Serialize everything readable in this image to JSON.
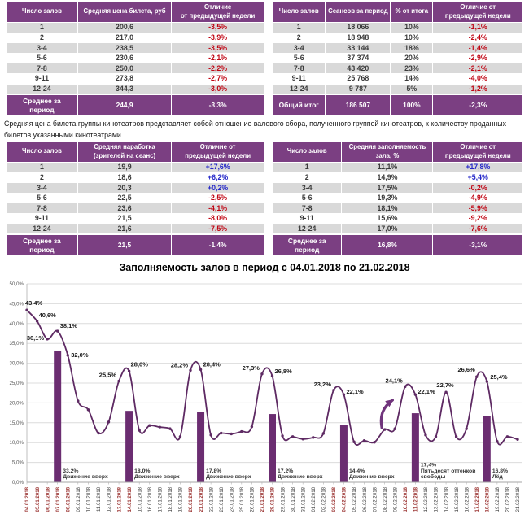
{
  "colors": {
    "header_purple": "#7b3f82",
    "row_gray": "#d9d9d9",
    "line_purple": "#5e2a63",
    "bar_purple": "#6b2d71",
    "arrow_purple": "#70347c",
    "positive_blue": "#2427c9",
    "negative_red": "#c00513",
    "holiday_date_red": "#9e3a38",
    "weekday_date_gray": "#3f3f3f"
  },
  "tables": {
    "price": {
      "headers": [
        "Число залов",
        "Средняя цена билета, руб",
        "Отличие\nот предыдущей недели"
      ],
      "rows": [
        [
          "1",
          "200,6",
          "-3,5%"
        ],
        [
          "2",
          "217,0",
          "-3,9%"
        ],
        [
          "3-4",
          "238,5",
          "-3,5%"
        ],
        [
          "5-6",
          "230,6",
          "-2,1%"
        ],
        [
          "7-8",
          "250,0",
          "-2,2%"
        ],
        [
          "9-11",
          "273,8",
          "-2,7%"
        ],
        [
          "12-24",
          "344,3",
          "-3,0%"
        ]
      ],
      "footer": [
        "Среднее за\nпериод",
        "244,9",
        "-3,3%"
      ]
    },
    "sessions": {
      "headers": [
        "Число залов",
        "Сеансов за период",
        "% от итога",
        "Отличие от\nпредыдущей недели"
      ],
      "rows": [
        [
          "1",
          "18 066",
          "10%",
          "-1,1%"
        ],
        [
          "2",
          "18 948",
          "10%",
          "-2,4%"
        ],
        [
          "3-4",
          "33 144",
          "18%",
          "-1,4%"
        ],
        [
          "5-6",
          "37 374",
          "20%",
          "-2,9%"
        ],
        [
          "7-8",
          "43 420",
          "23%",
          "-2,1%"
        ],
        [
          "9-11",
          "25 768",
          "14%",
          "-4,0%"
        ],
        [
          "12-24",
          "9 787",
          "5%",
          "-1,2%"
        ]
      ],
      "footer": [
        "Общий итог",
        "186 507",
        "100%",
        "-2,3%"
      ]
    },
    "attendance": {
      "headers": [
        "Число залов",
        "Средняя наработка\n(зрителей на сеанс)",
        "Отличие от\nпредыдущей недели"
      ],
      "rows": [
        [
          "1",
          "19,9",
          "+17,6%"
        ],
        [
          "2",
          "18,6",
          "+6,2%"
        ],
        [
          "3-4",
          "20,3",
          "+0,2%"
        ],
        [
          "5-6",
          "22,5",
          "-2,5%"
        ],
        [
          "7-8",
          "23,6",
          "-4,1%"
        ],
        [
          "9-11",
          "21,5",
          "-8,0%"
        ],
        [
          "12-24",
          "21,6",
          "-7,5%"
        ]
      ],
      "footer": [
        "Среднее за\nпериод",
        "21,5",
        "-1,4%"
      ]
    },
    "occupancy": {
      "headers": [
        "Число залов",
        "Средняя заполняемость\nзала, %",
        "Отличие от\nпредыдущей недели"
      ],
      "rows": [
        [
          "1",
          "11,1%",
          "+17,8%"
        ],
        [
          "2",
          "14,9%",
          "+5,4%"
        ],
        [
          "3-4",
          "17,5%",
          "-0,2%"
        ],
        [
          "5-6",
          "19,3%",
          "-4,9%"
        ],
        [
          "7-8",
          "18,1%",
          "-5,9%"
        ],
        [
          "9-11",
          "15,6%",
          "-9,2%"
        ],
        [
          "12-24",
          "17,0%",
          "-7,6%"
        ]
      ],
      "footer": [
        "Среднее за\nпериод",
        "16,8%",
        "-3,1%"
      ]
    }
  },
  "note": "Средняя цена билета группы кинотеатров представляет собой отношение валового сбора, полученного группой кинотеатров, к количеству проданных билетов указанными кинотеатрами.",
  "chart_data": {
    "type": "line",
    "title": "Заполняемость залов в период с 04.01.2018 по 21.02.2018",
    "ylim": [
      0,
      50
    ],
    "ytick_step": 5,
    "yticks": [
      "50,0%",
      "45,0%",
      "40,0%",
      "35,0%",
      "30,0%",
      "25,0%",
      "20,0%",
      "15,0%",
      "10,0%",
      "5,0%",
      "0,0%"
    ],
    "grid": true,
    "legend": "none",
    "points": [
      {
        "date": "04.01.2018",
        "value": 43.4,
        "label": "43,4%",
        "holiday": true
      },
      {
        "date": "05.01.2018",
        "value": 40.6,
        "label": "40,6%",
        "holiday": true
      },
      {
        "date": "06.01.2018",
        "value": 36.1,
        "label": "36,1%",
        "holiday": true
      },
      {
        "date": "07.01.2018",
        "value": 38.1,
        "label": "38,1%",
        "holiday": true
      },
      {
        "date": "08.01.2018",
        "value": 32.0,
        "label": "32,0%",
        "holiday": true
      },
      {
        "date": "09.01.2018",
        "value": 20.5,
        "holiday": false
      },
      {
        "date": "10.01.2018",
        "value": 18.3,
        "holiday": false
      },
      {
        "date": "11.01.2018",
        "value": 12.4,
        "holiday": false
      },
      {
        "date": "12.01.2018",
        "value": 15.2,
        "holiday": false
      },
      {
        "date": "13.01.2018",
        "value": 25.5,
        "label": "25,5%",
        "holiday": true
      },
      {
        "date": "14.01.2018",
        "value": 28.0,
        "label": "28,0%",
        "holiday": true
      },
      {
        "date": "15.01.2018",
        "value": 13.1,
        "holiday": false
      },
      {
        "date": "16.01.2018",
        "value": 14.3,
        "holiday": false
      },
      {
        "date": "17.01.2018",
        "value": 13.9,
        "holiday": false
      },
      {
        "date": "18.01.2018",
        "value": 13.5,
        "holiday": false
      },
      {
        "date": "19.01.2018",
        "value": 11.5,
        "holiday": false
      },
      {
        "date": "20.01.2018",
        "value": 28.2,
        "label": "28,2%",
        "holiday": true
      },
      {
        "date": "21.01.2018",
        "value": 28.4,
        "label": "28,4%",
        "holiday": true
      },
      {
        "date": "22.01.2018",
        "value": 11.9,
        "holiday": false
      },
      {
        "date": "23.01.2018",
        "value": 12.4,
        "holiday": false
      },
      {
        "date": "24.01.2018",
        "value": 12.2,
        "holiday": false
      },
      {
        "date": "25.01.2018",
        "value": 12.8,
        "holiday": false
      },
      {
        "date": "26.01.2018",
        "value": 14.0,
        "holiday": false
      },
      {
        "date": "27.01.2018",
        "value": 27.3,
        "label": "27,3%",
        "holiday": true
      },
      {
        "date": "28.01.2018",
        "value": 26.8,
        "label": "26,8%",
        "holiday": true
      },
      {
        "date": "29.01.2018",
        "value": 11.7,
        "holiday": false
      },
      {
        "date": "30.01.2018",
        "value": 11.5,
        "holiday": false
      },
      {
        "date": "31.01.2018",
        "value": 10.9,
        "holiday": false
      },
      {
        "date": "01.02.2018",
        "value": 11.3,
        "holiday": false
      },
      {
        "date": "02.02.2018",
        "value": 12.3,
        "holiday": false
      },
      {
        "date": "03.02.2018",
        "value": 23.2,
        "label": "23,2%",
        "holiday": true
      },
      {
        "date": "04.02.2018",
        "value": 22.1,
        "label": "22,1%",
        "holiday": true
      },
      {
        "date": "05.02.2018",
        "value": 10.2,
        "holiday": false
      },
      {
        "date": "06.02.2018",
        "value": 10.5,
        "holiday": false
      },
      {
        "date": "07.02.2018",
        "value": 10.1,
        "holiday": false
      },
      {
        "date": "08.02.2018",
        "value": 13.3,
        "holiday": false
      },
      {
        "date": "09.02.2018",
        "value": 13.5,
        "holiday": false
      },
      {
        "date": "10.02.2018",
        "value": 24.1,
        "label": "24,1%",
        "holiday": true
      },
      {
        "date": "11.02.2018",
        "value": 22.1,
        "label": "22,1%",
        "holiday": true
      },
      {
        "date": "12.02.2018",
        "value": 11.9,
        "holiday": false
      },
      {
        "date": "13.02.2018",
        "value": 11.5,
        "holiday": false
      },
      {
        "date": "14.02.2018",
        "value": 22.7,
        "label": "22,7%",
        "holiday": false
      },
      {
        "date": "15.02.2018",
        "value": 11.5,
        "holiday": false
      },
      {
        "date": "16.02.2018",
        "value": 13.5,
        "holiday": false
      },
      {
        "date": "17.02.2018",
        "value": 26.6,
        "label": "26,6%",
        "holiday": true
      },
      {
        "date": "18.02.2018",
        "value": 25.4,
        "label": "25,4%",
        "holiday": true
      },
      {
        "date": "19.02.2018",
        "value": 10.3,
        "holiday": false
      },
      {
        "date": "20.02.2018",
        "value": 11.5,
        "holiday": false
      },
      {
        "date": "21.02.2018",
        "value": 10.8,
        "holiday": false
      }
    ],
    "bars": [
      {
        "date": "07.01.2018",
        "value": 33.2,
        "label": "33,2%",
        "movie": "Движение вверх"
      },
      {
        "date": "14.01.2018",
        "value": 18.0,
        "label": "18,0%",
        "movie": "Движение вверх"
      },
      {
        "date": "21.01.2018",
        "value": 17.8,
        "label": "17,8%",
        "movie": "Движение вверх"
      },
      {
        "date": "28.01.2018",
        "value": 17.2,
        "label": "17,2%",
        "movie": "Движение вверх"
      },
      {
        "date": "04.02.2018",
        "value": 14.4,
        "label": "14,4%",
        "movie": "Движение вверх"
      },
      {
        "date": "11.02.2018",
        "value": 17.4,
        "label": "17,4%",
        "movie": "Пятьдесят оттенков свободы"
      },
      {
        "date": "18.02.2018",
        "value": 16.8,
        "label": "16,8%",
        "movie": "Лёд"
      }
    ],
    "trend_arrow": {
      "near_date": "09.02.2018",
      "direction": "up-right"
    }
  }
}
